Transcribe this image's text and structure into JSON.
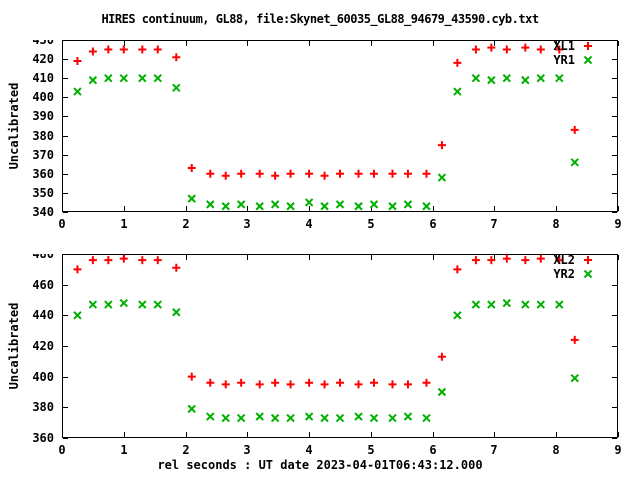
{
  "title": "HIRES continuum, GL88, file:Skynet_60035_GL88_94679_43590.cyb.txt",
  "xlabel": "rel seconds : UT date 2023-04-01T06:43:12.000",
  "colors": {
    "series_red": "#ff0000",
    "series_green": "#00b000",
    "axis": "#000000",
    "background": "#ffffff"
  },
  "chart_data": [
    {
      "type": "scatter",
      "title": "",
      "ylabel": "Uncalibrated",
      "xlim": [
        0,
        9
      ],
      "ylim": [
        340,
        430
      ],
      "xticks": [
        0,
        1,
        2,
        3,
        4,
        5,
        6,
        7,
        8,
        9
      ],
      "yticks": [
        340,
        350,
        360,
        370,
        380,
        390,
        400,
        410,
        420,
        430
      ],
      "grid": false,
      "legend_position": "top-right",
      "x": [
        0.25,
        0.5,
        0.75,
        1.0,
        1.3,
        1.55,
        1.85,
        2.1,
        2.4,
        2.65,
        2.9,
        3.2,
        3.45,
        3.7,
        4.0,
        4.25,
        4.5,
        4.8,
        5.05,
        5.35,
        5.6,
        5.9,
        6.15,
        6.4,
        6.7,
        6.95,
        7.2,
        7.5,
        7.75,
        8.05,
        8.3
      ],
      "series": [
        {
          "name": "XL1",
          "marker": "plus",
          "color": "#ff0000",
          "y": [
            419,
            424,
            425,
            425,
            425,
            425,
            421,
            363,
            360,
            359,
            360,
            360,
            359,
            360,
            360,
            359,
            360,
            360,
            360,
            360,
            360,
            360,
            375,
            418,
            425,
            426,
            425,
            426,
            425,
            425,
            383
          ]
        },
        {
          "name": "YR1",
          "marker": "cross",
          "color": "#00b000",
          "y": [
            403,
            409,
            410,
            410,
            410,
            410,
            405,
            347,
            344,
            343,
            344,
            343,
            344,
            343,
            345,
            343,
            344,
            343,
            344,
            343,
            344,
            343,
            358,
            403,
            410,
            409,
            410,
            409,
            410,
            410,
            366
          ]
        }
      ]
    },
    {
      "type": "scatter",
      "title": "",
      "ylabel": "Uncalibrated",
      "xlim": [
        0,
        9
      ],
      "ylim": [
        360,
        480
      ],
      "xticks": [
        0,
        1,
        2,
        3,
        4,
        5,
        6,
        7,
        8,
        9
      ],
      "yticks": [
        360,
        380,
        400,
        420,
        440,
        460,
        480
      ],
      "grid": false,
      "legend_position": "top-right",
      "x": [
        0.25,
        0.5,
        0.75,
        1.0,
        1.3,
        1.55,
        1.85,
        2.1,
        2.4,
        2.65,
        2.9,
        3.2,
        3.45,
        3.7,
        4.0,
        4.25,
        4.5,
        4.8,
        5.05,
        5.35,
        5.6,
        5.9,
        6.15,
        6.4,
        6.7,
        6.95,
        7.2,
        7.5,
        7.75,
        8.05,
        8.3
      ],
      "series": [
        {
          "name": "XL2",
          "marker": "plus",
          "color": "#ff0000",
          "y": [
            470,
            476,
            476,
            477,
            476,
            476,
            471,
            400,
            396,
            395,
            396,
            395,
            396,
            395,
            396,
            395,
            396,
            395,
            396,
            395,
            395,
            396,
            413,
            470,
            476,
            476,
            477,
            476,
            477,
            476,
            424
          ]
        },
        {
          "name": "YR2",
          "marker": "cross",
          "color": "#00b000",
          "y": [
            440,
            447,
            447,
            448,
            447,
            447,
            442,
            379,
            374,
            373,
            373,
            374,
            373,
            373,
            374,
            373,
            373,
            374,
            373,
            373,
            374,
            373,
            390,
            440,
            447,
            447,
            448,
            447,
            447,
            447,
            399
          ]
        }
      ]
    }
  ]
}
